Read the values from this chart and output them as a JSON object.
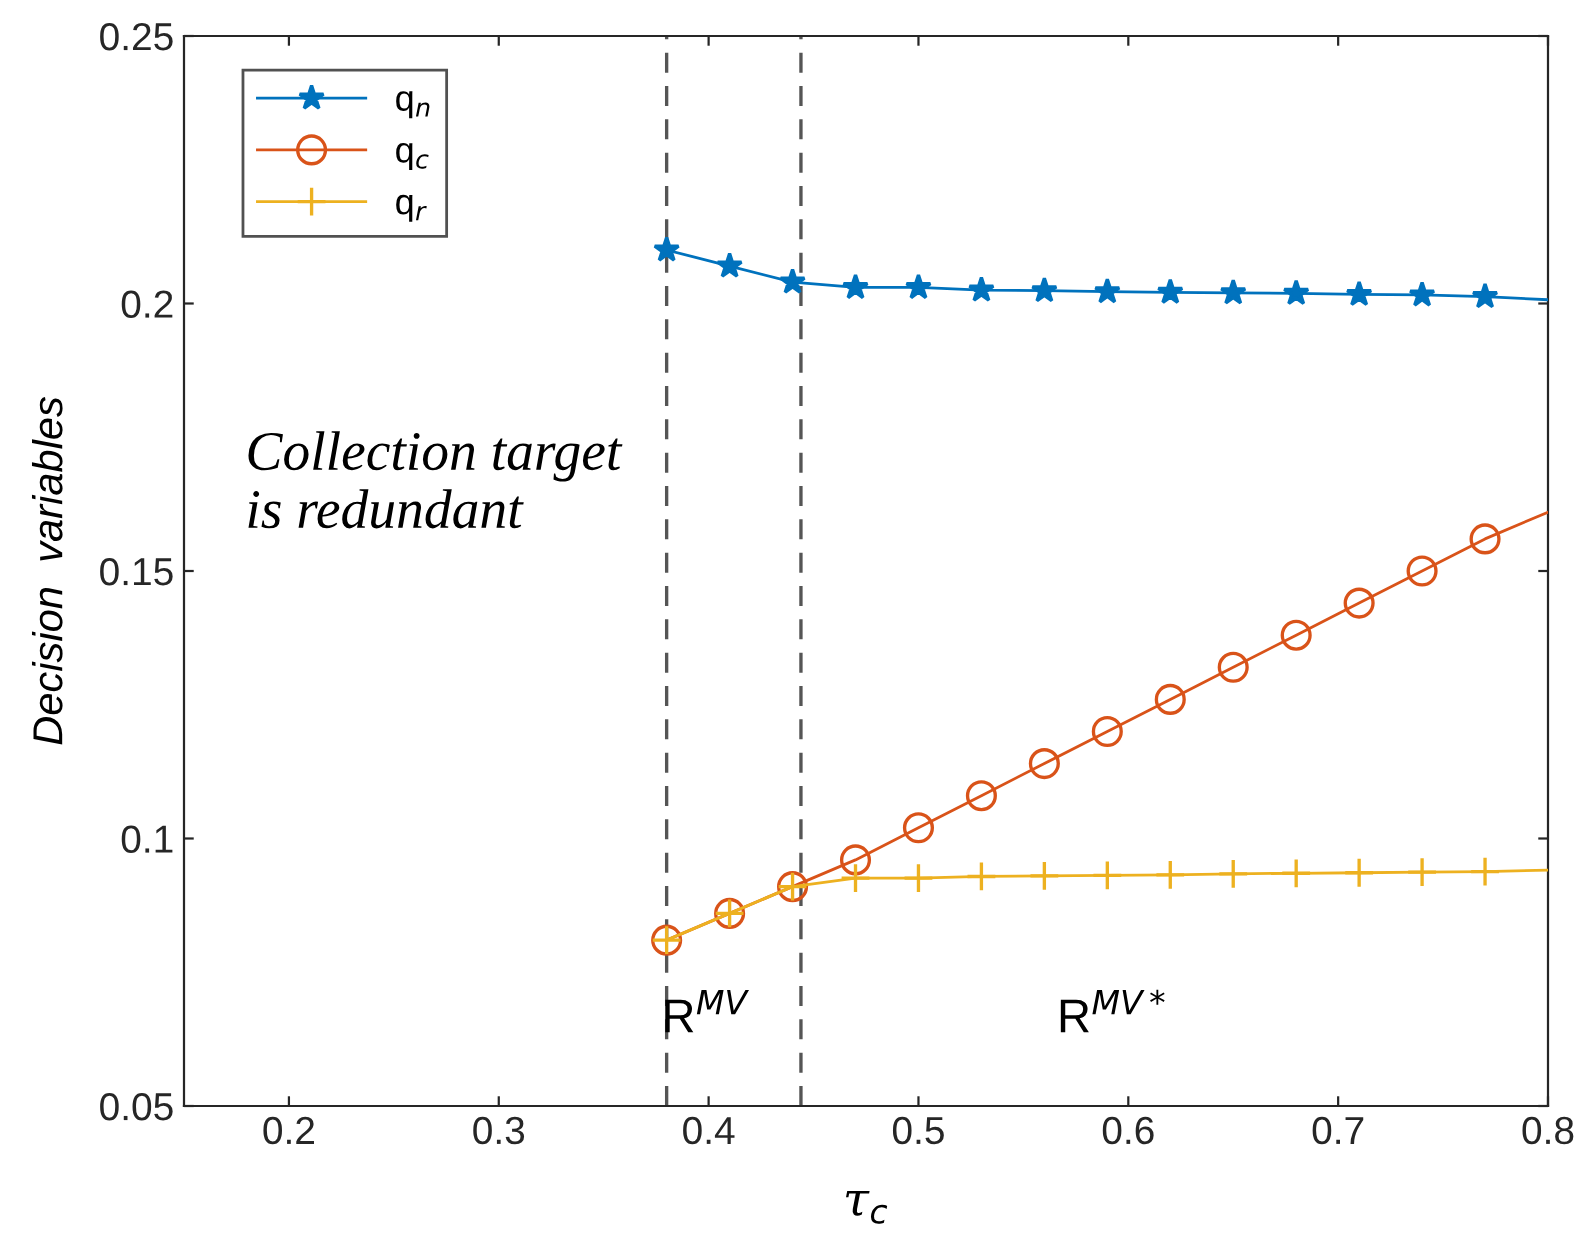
{
  "chart_data": {
    "type": "line",
    "xlabel": "τ$_{c}$",
    "ylabel": "Decision  variables",
    "x": [
      0.38,
      0.41,
      0.44,
      0.47,
      0.5,
      0.53,
      0.56,
      0.59,
      0.62,
      0.65,
      0.68,
      0.71,
      0.74,
      0.77,
      0.8
    ],
    "series": [
      {
        "name": "q$_{n}$",
        "color": "#0072bd",
        "marker": "star",
        "values": [
          0.21,
          0.207,
          0.204,
          0.203,
          0.203,
          0.2025,
          0.2024,
          0.2022,
          0.2021,
          0.202,
          0.2019,
          0.2017,
          0.2016,
          0.2013,
          0.2007
        ]
      },
      {
        "name": "q$_{c}$",
        "color": "#d95319",
        "marker": "circle",
        "values": [
          0.081,
          0.086,
          0.091,
          0.096,
          0.102,
          0.108,
          0.114,
          0.12,
          0.126,
          0.132,
          0.138,
          0.144,
          0.15,
          0.156,
          0.161
        ]
      },
      {
        "name": "q$_{r}$",
        "color": "#edb120",
        "marker": "cross",
        "values": [
          0.081,
          0.086,
          0.091,
          0.0926,
          0.0926,
          0.0929,
          0.093,
          0.0931,
          0.0932,
          0.0934,
          0.0935,
          0.0936,
          0.0937,
          0.0938,
          0.0941
        ]
      }
    ],
    "xlim": [
      0.15,
      0.8
    ],
    "ylim": [
      0.05,
      0.25
    ],
    "xticks": [
      0.2,
      0.3,
      0.4,
      0.5,
      0.6,
      0.7,
      0.8
    ],
    "yticks": [
      0.05,
      0.1,
      0.15,
      0.2,
      0.25
    ],
    "ref_lines": [
      {
        "axis": "x",
        "value": 0.38,
        "color": "#555555",
        "line_style": "dashed"
      },
      {
        "axis": "x",
        "value": 0.444,
        "color": "#555555",
        "line_style": "dashed"
      }
    ],
    "annotations": [
      "Collection target\nis redundant",
      "R$^{MV}$",
      "R$^{MV*}$"
    ],
    "legend": "top left",
    "grid": false
  }
}
